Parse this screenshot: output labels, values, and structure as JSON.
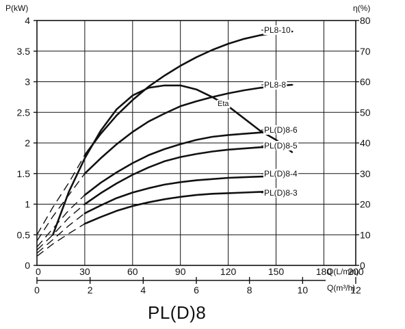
{
  "chart_data": {
    "type": "line",
    "title": "PL(D)8",
    "left_axis": {
      "label": "P(kW)",
      "ylim": [
        0,
        4
      ],
      "ticks": [
        "0",
        "0.5",
        "1",
        "1.5",
        "2",
        "2.5",
        "3",
        "3.5",
        "4"
      ]
    },
    "right_axis": {
      "label": "η(%)",
      "ylim": [
        0,
        80
      ],
      "ticks": [
        "0",
        "10",
        "20",
        "30",
        "40",
        "50",
        "60",
        "70",
        "80"
      ]
    },
    "x_axis": {
      "label": "Q(L/min)",
      "xlim": [
        0,
        200
      ],
      "ticks": [
        "0",
        "30",
        "60",
        "90",
        "120",
        "150",
        "180",
        "200"
      ]
    },
    "x_axis2": {
      "label": "Q(m³/h)",
      "xlim": [
        0,
        12
      ],
      "ticks": [
        "0",
        "2",
        "4",
        "6",
        "8",
        "10",
        "12"
      ]
    },
    "grid": true,
    "series": [
      {
        "name": "PL8-10",
        "axis": "left",
        "dashed": [
          [
            0,
            0.5
          ],
          [
            10,
            0.95
          ],
          [
            20,
            1.35
          ],
          [
            30,
            1.8
          ]
        ],
        "solid": [
          [
            30,
            1.8
          ],
          [
            40,
            2.15
          ],
          [
            50,
            2.45
          ],
          [
            60,
            2.7
          ],
          [
            70,
            2.92
          ],
          [
            80,
            3.1
          ],
          [
            90,
            3.26
          ],
          [
            100,
            3.4
          ],
          [
            110,
            3.52
          ],
          [
            120,
            3.62
          ],
          [
            130,
            3.7
          ],
          [
            140,
            3.76
          ],
          [
            150,
            3.8
          ],
          [
            160,
            3.82
          ]
        ]
      },
      {
        "name": "PL8-8",
        "axis": "left",
        "dashed": [
          [
            0,
            0.4
          ],
          [
            10,
            0.8
          ],
          [
            20,
            1.15
          ],
          [
            30,
            1.5
          ]
        ],
        "solid": [
          [
            30,
            1.5
          ],
          [
            40,
            1.75
          ],
          [
            50,
            1.98
          ],
          [
            60,
            2.18
          ],
          [
            70,
            2.35
          ],
          [
            80,
            2.48
          ],
          [
            90,
            2.6
          ],
          [
            100,
            2.68
          ],
          [
            110,
            2.75
          ],
          [
            120,
            2.81
          ],
          [
            130,
            2.86
          ],
          [
            140,
            2.9
          ],
          [
            150,
            2.93
          ],
          [
            160,
            2.95
          ]
        ]
      },
      {
        "name": "PL(D)8-6",
        "axis": "left",
        "dashed": [
          [
            0,
            0.3
          ],
          [
            10,
            0.6
          ],
          [
            20,
            0.9
          ],
          [
            30,
            1.15
          ]
        ],
        "solid": [
          [
            30,
            1.15
          ],
          [
            40,
            1.35
          ],
          [
            50,
            1.52
          ],
          [
            60,
            1.67
          ],
          [
            70,
            1.8
          ],
          [
            80,
            1.9
          ],
          [
            90,
            1.98
          ],
          [
            100,
            2.05
          ],
          [
            110,
            2.1
          ],
          [
            120,
            2.13
          ],
          [
            130,
            2.15
          ],
          [
            140,
            2.17
          ],
          [
            150,
            2.19
          ],
          [
            160,
            2.2
          ]
        ]
      },
      {
        "name": "PL(D)8-5",
        "axis": "left",
        "dashed": [
          [
            0,
            0.25
          ],
          [
            10,
            0.5
          ],
          [
            20,
            0.78
          ],
          [
            30,
            1.0
          ]
        ],
        "solid": [
          [
            30,
            1.0
          ],
          [
            40,
            1.18
          ],
          [
            50,
            1.34
          ],
          [
            60,
            1.48
          ],
          [
            70,
            1.6
          ],
          [
            80,
            1.7
          ],
          [
            90,
            1.77
          ],
          [
            100,
            1.82
          ],
          [
            110,
            1.86
          ],
          [
            120,
            1.89
          ],
          [
            130,
            1.91
          ],
          [
            140,
            1.93
          ],
          [
            150,
            1.94
          ],
          [
            160,
            1.95
          ]
        ]
      },
      {
        "name": "PL(D)8-4",
        "axis": "left",
        "dashed": [
          [
            0,
            0.2
          ],
          [
            10,
            0.42
          ],
          [
            20,
            0.65
          ],
          [
            30,
            0.85
          ]
        ],
        "solid": [
          [
            30,
            0.85
          ],
          [
            40,
            0.98
          ],
          [
            50,
            1.1
          ],
          [
            60,
            1.19
          ],
          [
            70,
            1.26
          ],
          [
            80,
            1.32
          ],
          [
            90,
            1.36
          ],
          [
            100,
            1.39
          ],
          [
            110,
            1.41
          ],
          [
            120,
            1.43
          ],
          [
            130,
            1.44
          ],
          [
            140,
            1.45
          ],
          [
            150,
            1.46
          ],
          [
            160,
            1.47
          ]
        ]
      },
      {
        "name": "PL(D)8-3",
        "axis": "left",
        "dashed": [
          [
            0,
            0.15
          ],
          [
            10,
            0.35
          ],
          [
            20,
            0.52
          ],
          [
            30,
            0.68
          ]
        ],
        "solid": [
          [
            30,
            0.68
          ],
          [
            40,
            0.79
          ],
          [
            50,
            0.89
          ],
          [
            60,
            0.97
          ],
          [
            70,
            1.03
          ],
          [
            80,
            1.08
          ],
          [
            90,
            1.12
          ],
          [
            100,
            1.15
          ],
          [
            110,
            1.17
          ],
          [
            120,
            1.18
          ],
          [
            130,
            1.19
          ],
          [
            140,
            1.2
          ],
          [
            150,
            1.21
          ],
          [
            160,
            1.22
          ]
        ]
      },
      {
        "name": "Eta",
        "axis": "right",
        "dashed": [],
        "solid": [
          [
            10,
            10
          ],
          [
            20,
            24
          ],
          [
            30,
            35
          ],
          [
            40,
            44
          ],
          [
            50,
            51
          ],
          [
            60,
            55.5
          ],
          [
            70,
            58
          ],
          [
            80,
            58.8
          ],
          [
            90,
            58.8
          ],
          [
            100,
            57.5
          ],
          [
            110,
            55
          ],
          [
            120,
            52
          ],
          [
            130,
            48
          ],
          [
            140,
            44
          ],
          [
            150,
            41
          ],
          [
            160,
            37
          ]
        ]
      }
    ]
  }
}
